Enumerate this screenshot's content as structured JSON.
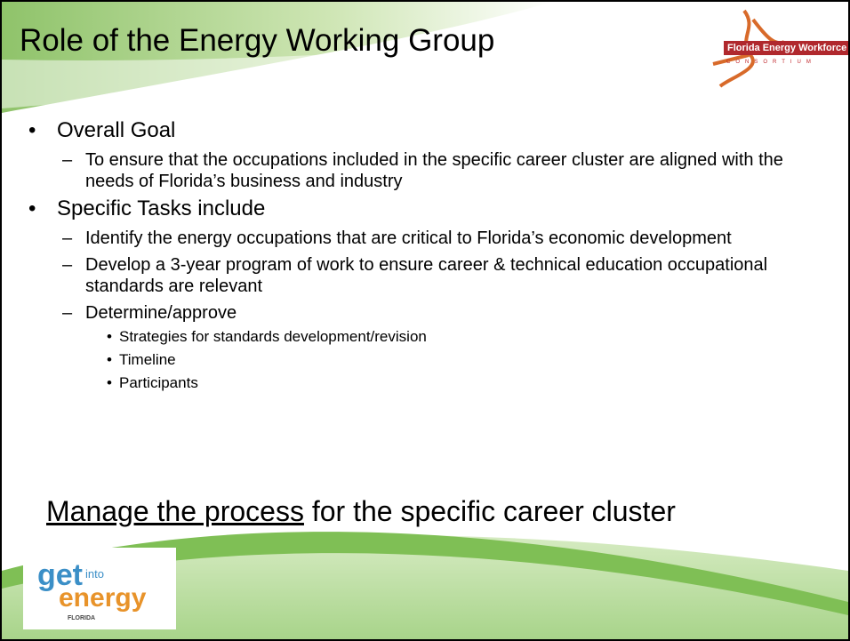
{
  "title": "Role of the Energy Working Group",
  "logo": {
    "name": "Florida Energy Workforce",
    "tagline": "CONSORTIUM"
  },
  "bullets": [
    {
      "text": "Overall Goal",
      "items": [
        {
          "text": "To ensure that the occupations included in the specific career cluster are aligned with the needs of Florida’s business and industry"
        }
      ]
    },
    {
      "text": "Specific Tasks include",
      "items": [
        {
          "text": "Identify the energy occupations that are critical to Florida’s economic development"
        },
        {
          "text": "Develop a 3-year program of work to ensure career & technical education occupational standards are relevant"
        },
        {
          "text": "Determine/approve",
          "items": [
            "Strategies for standards development/revision",
            "Timeline",
            "Participants"
          ]
        }
      ]
    }
  ],
  "footer": {
    "emphasis": "Manage the process",
    "rest": "for the specific career cluster"
  },
  "badge": {
    "get": "get",
    "into": "into",
    "energy": "energy",
    "state": "FLORIDA"
  }
}
